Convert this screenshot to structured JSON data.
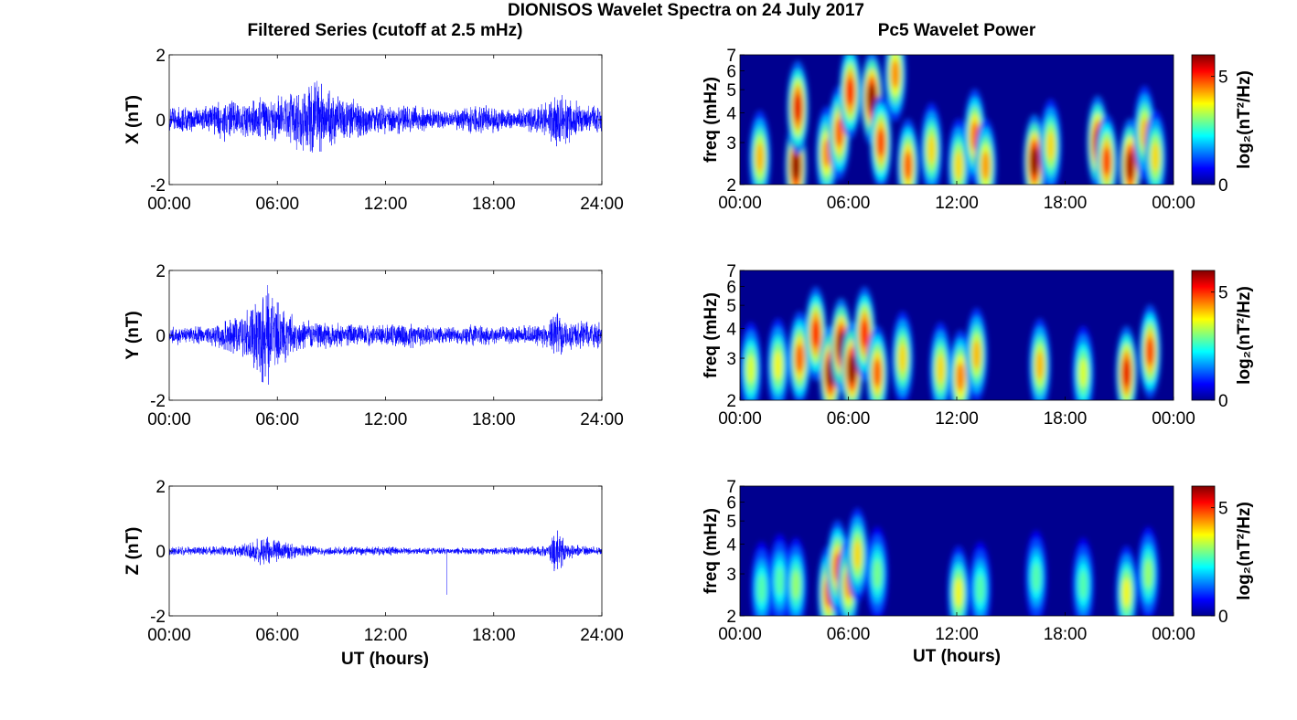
{
  "figure": {
    "title": "DIONISOS Wavelet Spectra on 24 July 2017",
    "left_column_title": "Filtered Series (cutoff at 2.5 mHz)",
    "right_column_title": "Pc5 Wavelet Power",
    "x_axis_label": "UT (hours)"
  },
  "chart_data": [
    {
      "type": "line",
      "component": "X",
      "ylabel": "X (nT)",
      "ylim": [
        -2,
        2
      ],
      "yticks": [
        "-2",
        "0",
        "2"
      ],
      "xlim": [
        0,
        24
      ],
      "xticks": [
        "00:00",
        "06:00",
        "12:00",
        "18:00",
        "24:00"
      ],
      "color": "#0000ff",
      "envelope_x": [
        0,
        2,
        3,
        4,
        5,
        6,
        7,
        7.5,
        8,
        9,
        10,
        11,
        12,
        13,
        14,
        15,
        16,
        17,
        18,
        19,
        20,
        21,
        21.5,
        22,
        23,
        24
      ],
      "envelope_y": [
        0.45,
        0.45,
        0.8,
        0.55,
        0.9,
        0.8,
        1.0,
        1.2,
        1.4,
        1.0,
        0.7,
        0.6,
        0.5,
        0.5,
        0.45,
        0.35,
        0.35,
        0.6,
        0.45,
        0.35,
        0.45,
        0.6,
        1.0,
        0.9,
        0.45,
        0.45
      ]
    },
    {
      "type": "line",
      "component": "Y",
      "ylabel": "Y (nT)",
      "ylim": [
        -2,
        2
      ],
      "yticks": [
        "-2",
        "0",
        "2"
      ],
      "xlim": [
        0,
        24
      ],
      "xticks": [
        "00:00",
        "06:00",
        "12:00",
        "18:00",
        "24:00"
      ],
      "color": "#0000ff",
      "envelope_x": [
        0,
        2,
        3,
        4,
        4.5,
        5,
        5.5,
        6,
        7,
        8,
        9,
        10,
        12,
        13,
        14,
        15,
        16,
        17,
        18,
        19,
        20,
        21,
        21.5,
        22,
        23,
        24
      ],
      "envelope_y": [
        0.3,
        0.3,
        0.5,
        0.7,
        1.1,
        1.5,
        1.8,
        1.2,
        0.6,
        0.45,
        0.45,
        0.4,
        0.35,
        0.5,
        0.35,
        0.3,
        0.3,
        0.4,
        0.3,
        0.3,
        0.35,
        0.45,
        0.8,
        0.5,
        0.45,
        0.45
      ]
    },
    {
      "type": "line",
      "component": "Z",
      "ylabel": "Z (nT)",
      "ylim": [
        -2,
        2
      ],
      "yticks": [
        "-2",
        "0",
        "2"
      ],
      "xlim": [
        0,
        24
      ],
      "xticks": [
        "00:00",
        "06:00",
        "12:00",
        "18:00",
        "24:00"
      ],
      "color": "#0000ff",
      "envelope_x": [
        0,
        2,
        4,
        5,
        5.5,
        6,
        7,
        8,
        10,
        12,
        14,
        16,
        18,
        20,
        21,
        21.5,
        22,
        23,
        24
      ],
      "envelope_y": [
        0.15,
        0.15,
        0.2,
        0.45,
        0.5,
        0.4,
        0.25,
        0.15,
        0.15,
        0.15,
        0.12,
        0.12,
        0.12,
        0.15,
        0.2,
        0.9,
        0.3,
        0.15,
        0.15
      ],
      "spike": {
        "x": 15.4,
        "y": -1.35
      }
    },
    {
      "type": "heatmap",
      "component": "X",
      "ylabel": "freq (mHz)",
      "ylim": [
        2,
        7
      ],
      "yscale": "log",
      "yticks": [
        "2",
        "3",
        "4",
        "5",
        "6",
        "7"
      ],
      "xlim": [
        0,
        24
      ],
      "xticks": [
        "00:00",
        "06:00",
        "12:00",
        "18:00",
        "00:00"
      ],
      "colorbar_label": "log₂(nT²/Hz)",
      "colorbar_ticks": [
        "0",
        "5"
      ],
      "colorbar_range": [
        0,
        6
      ],
      "blobs": [
        {
          "t": 1.1,
          "f": 2.6,
          "amp": 4.2
        },
        {
          "t": 3.1,
          "f": 2.4,
          "amp": 6.0
        },
        {
          "t": 3.2,
          "f": 4.2,
          "amp": 5.4
        },
        {
          "t": 4.8,
          "f": 2.7,
          "amp": 4.5
        },
        {
          "t": 5.5,
          "f": 3.3,
          "amp": 4.8
        },
        {
          "t": 6.1,
          "f": 4.9,
          "amp": 5.2
        },
        {
          "t": 7.3,
          "f": 4.6,
          "amp": 6.0
        },
        {
          "t": 7.8,
          "f": 3.0,
          "amp": 5.0
        },
        {
          "t": 8.6,
          "f": 5.8,
          "amp": 4.5
        },
        {
          "t": 9.3,
          "f": 2.4,
          "amp": 4.8
        },
        {
          "t": 10.6,
          "f": 2.8,
          "amp": 4.0
        },
        {
          "t": 12.1,
          "f": 2.4,
          "amp": 4.0
        },
        {
          "t": 13.0,
          "f": 3.2,
          "amp": 4.7
        },
        {
          "t": 13.6,
          "f": 2.4,
          "amp": 4.4
        },
        {
          "t": 16.3,
          "f": 2.5,
          "amp": 6.0
        },
        {
          "t": 17.2,
          "f": 2.9,
          "amp": 4.0
        },
        {
          "t": 19.8,
          "f": 3.0,
          "amp": 5.6
        },
        {
          "t": 20.3,
          "f": 2.5,
          "amp": 5.0
        },
        {
          "t": 21.6,
          "f": 2.4,
          "amp": 5.8
        },
        {
          "t": 22.4,
          "f": 3.3,
          "amp": 4.2
        },
        {
          "t": 23.0,
          "f": 2.6,
          "amp": 4.0
        }
      ]
    },
    {
      "type": "heatmap",
      "component": "Y",
      "ylabel": "freq (mHz)",
      "ylim": [
        2,
        7
      ],
      "yscale": "log",
      "yticks": [
        "2",
        "3",
        "4",
        "5",
        "6",
        "7"
      ],
      "xlim": [
        0,
        24
      ],
      "xticks": [
        "00:00",
        "06:00",
        "12:00",
        "18:00",
        "00:00"
      ],
      "colorbar_label": "log₂(nT²/Hz)",
      "colorbar_ticks": [
        "0",
        "5"
      ],
      "colorbar_range": [
        0,
        6
      ],
      "blobs": [
        {
          "t": 0.6,
          "f": 2.7,
          "amp": 3.6
        },
        {
          "t": 2.1,
          "f": 2.8,
          "amp": 3.8
        },
        {
          "t": 3.3,
          "f": 3.0,
          "amp": 4.8
        },
        {
          "t": 4.2,
          "f": 3.8,
          "amp": 5.2
        },
        {
          "t": 5.0,
          "f": 2.6,
          "amp": 6.0
        },
        {
          "t": 5.6,
          "f": 3.4,
          "amp": 6.0
        },
        {
          "t": 6.2,
          "f": 2.7,
          "amp": 6.0
        },
        {
          "t": 6.9,
          "f": 3.8,
          "amp": 5.2
        },
        {
          "t": 7.6,
          "f": 2.6,
          "amp": 4.8
        },
        {
          "t": 9.0,
          "f": 3.0,
          "amp": 4.0
        },
        {
          "t": 11.1,
          "f": 2.7,
          "amp": 4.0
        },
        {
          "t": 12.2,
          "f": 2.5,
          "amp": 4.6
        },
        {
          "t": 13.1,
          "f": 3.1,
          "amp": 4.2
        },
        {
          "t": 16.6,
          "f": 2.8,
          "amp": 4.2
        },
        {
          "t": 19.0,
          "f": 2.6,
          "amp": 3.6
        },
        {
          "t": 21.4,
          "f": 2.6,
          "amp": 5.4
        },
        {
          "t": 22.7,
          "f": 3.2,
          "amp": 5.0
        }
      ]
    },
    {
      "type": "heatmap",
      "component": "Z",
      "ylabel": "freq (mHz)",
      "ylim": [
        2,
        7
      ],
      "yscale": "log",
      "yticks": [
        "2",
        "3",
        "4",
        "5",
        "6",
        "7"
      ],
      "xlim": [
        0,
        24
      ],
      "xticks": [
        "00:00",
        "06:00",
        "12:00",
        "18:00",
        "00:00"
      ],
      "colorbar_label": "log₂(nT²/Hz)",
      "colorbar_ticks": [
        "0",
        "5"
      ],
      "colorbar_range": [
        0,
        6
      ],
      "blobs": [
        {
          "t": 1.2,
          "f": 2.6,
          "amp": 2.8
        },
        {
          "t": 2.2,
          "f": 2.8,
          "amp": 2.8
        },
        {
          "t": 3.1,
          "f": 2.7,
          "amp": 3.2
        },
        {
          "t": 4.9,
          "f": 2.5,
          "amp": 4.8
        },
        {
          "t": 5.4,
          "f": 3.2,
          "amp": 4.8
        },
        {
          "t": 6.0,
          "f": 2.7,
          "amp": 4.4
        },
        {
          "t": 6.5,
          "f": 3.6,
          "amp": 4.0
        },
        {
          "t": 7.6,
          "f": 3.0,
          "amp": 3.0
        },
        {
          "t": 12.1,
          "f": 2.5,
          "amp": 3.8
        },
        {
          "t": 13.3,
          "f": 2.6,
          "amp": 2.8
        },
        {
          "t": 16.4,
          "f": 2.9,
          "amp": 2.8
        },
        {
          "t": 19.0,
          "f": 2.7,
          "amp": 2.8
        },
        {
          "t": 21.4,
          "f": 2.5,
          "amp": 3.8
        },
        {
          "t": 22.6,
          "f": 3.0,
          "amp": 3.2
        }
      ]
    }
  ]
}
